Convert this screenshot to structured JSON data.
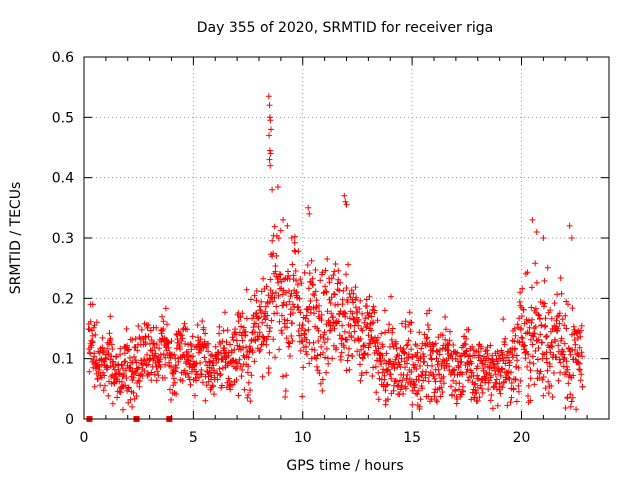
{
  "chart_data": {
    "type": "scatter",
    "title": "Day 355 of 2020, SRMTID for receiver riga",
    "xlabel": "GPS time / hours",
    "ylabel": "SRMTID / TECUs",
    "xlim": [
      0,
      24
    ],
    "ylim": [
      0,
      0.6
    ],
    "xticks": [
      0,
      5,
      10,
      15,
      20
    ],
    "yticks": [
      0,
      0.1,
      0.2,
      0.3,
      0.4,
      0.5,
      0.6
    ],
    "xtick_labels": [
      "0",
      "5",
      "10",
      "15",
      "20"
    ],
    "ytick_labels": [
      "0",
      "0.1",
      "0.2",
      "0.3",
      "0.4",
      "0.5",
      "0.6"
    ],
    "grid": true,
    "marker": "+",
    "color": "#ff0000",
    "baseline_markers": {
      "marker": "square",
      "x": [
        0.25,
        2.4,
        3.9
      ],
      "y": [
        0,
        0,
        0
      ]
    },
    "envelope": {
      "note": "scatter cloud summarised as per-hour central value and spread (TECU) used to render ~1800 '+' points",
      "x": [
        0.2,
        1,
        2,
        3,
        4,
        5,
        6,
        7,
        7.8,
        8.5,
        9,
        9.5,
        10,
        11,
        12,
        13,
        13.5,
        14,
        15,
        16,
        17,
        18,
        19,
        19.8,
        20.5,
        21,
        22,
        22.8
      ],
      "center": [
        0.12,
        0.09,
        0.08,
        0.11,
        0.11,
        0.1,
        0.09,
        0.11,
        0.14,
        0.2,
        0.2,
        0.2,
        0.16,
        0.18,
        0.17,
        0.13,
        0.1,
        0.09,
        0.09,
        0.09,
        0.09,
        0.08,
        0.08,
        0.12,
        0.14,
        0.13,
        0.12,
        0.1
      ],
      "spread": [
        0.05,
        0.05,
        0.05,
        0.05,
        0.05,
        0.05,
        0.05,
        0.06,
        0.08,
        0.1,
        0.1,
        0.1,
        0.09,
        0.09,
        0.08,
        0.07,
        0.06,
        0.06,
        0.06,
        0.06,
        0.05,
        0.05,
        0.05,
        0.08,
        0.09,
        0.09,
        0.08,
        0.06
      ]
    },
    "outliers": {
      "x": [
        8.45,
        8.48,
        8.5,
        8.52,
        8.55,
        8.46,
        8.5,
        8.53,
        8.48,
        8.51,
        8.6,
        10.25,
        10.3,
        11.9,
        11.95,
        12.0,
        9.1,
        9.3,
        9.5,
        20.5,
        20.7,
        21.0,
        22.2,
        22.3,
        0.3,
        0.4,
        2.2,
        1.2,
        13.8,
        18.0
      ],
      "y": [
        0.535,
        0.52,
        0.5,
        0.495,
        0.48,
        0.47,
        0.445,
        0.44,
        0.43,
        0.42,
        0.38,
        0.35,
        0.34,
        0.37,
        0.36,
        0.355,
        0.33,
        0.32,
        0.3,
        0.33,
        0.31,
        0.3,
        0.32,
        0.3,
        0.19,
        0.19,
        0.02,
        0.17,
        0.03,
        0.03
      ]
    }
  }
}
